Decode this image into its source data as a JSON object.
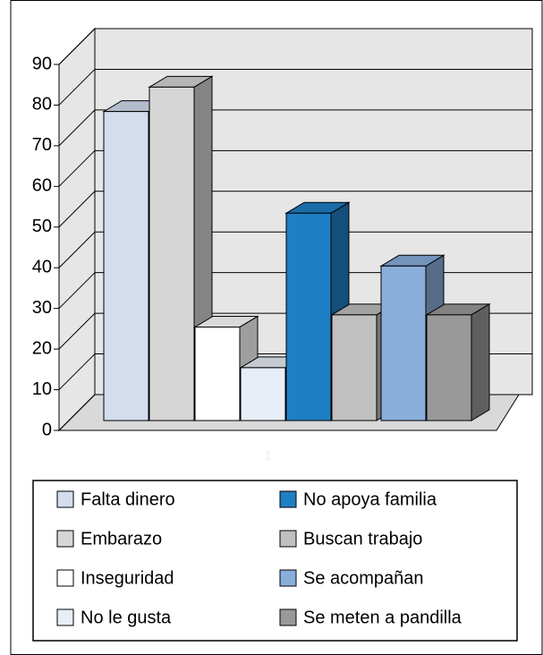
{
  "chart_data": {
    "type": "bar3d",
    "categories": [
      "1"
    ],
    "series": [
      {
        "name": "Falta dinero",
        "color": "#d3ddee",
        "values": [
          76
        ]
      },
      {
        "name": "Embarazo",
        "color": "#d6d6d6",
        "values": [
          82
        ]
      },
      {
        "name": "Inseguridad",
        "color": "#ffffff",
        "values": [
          23
        ]
      },
      {
        "name": "No le gusta",
        "color": "#e8eef8",
        "values": [
          13
        ]
      },
      {
        "name": "No apoya familia",
        "color": "#1f7fc4",
        "values": [
          51
        ]
      },
      {
        "name": "Buscan trabajo",
        "color": "#c0c0c0",
        "values": [
          26
        ]
      },
      {
        "name": "Se acompañan",
        "color": "#8aaedc",
        "values": [
          38
        ]
      },
      {
        "name": "Se meten a pandilla",
        "color": "#999999",
        "values": [
          26
        ]
      }
    ],
    "ylim": [
      0,
      90
    ],
    "yticks": [
      0,
      10,
      20,
      30,
      40,
      50,
      60,
      70,
      80,
      90
    ],
    "grid": true
  }
}
